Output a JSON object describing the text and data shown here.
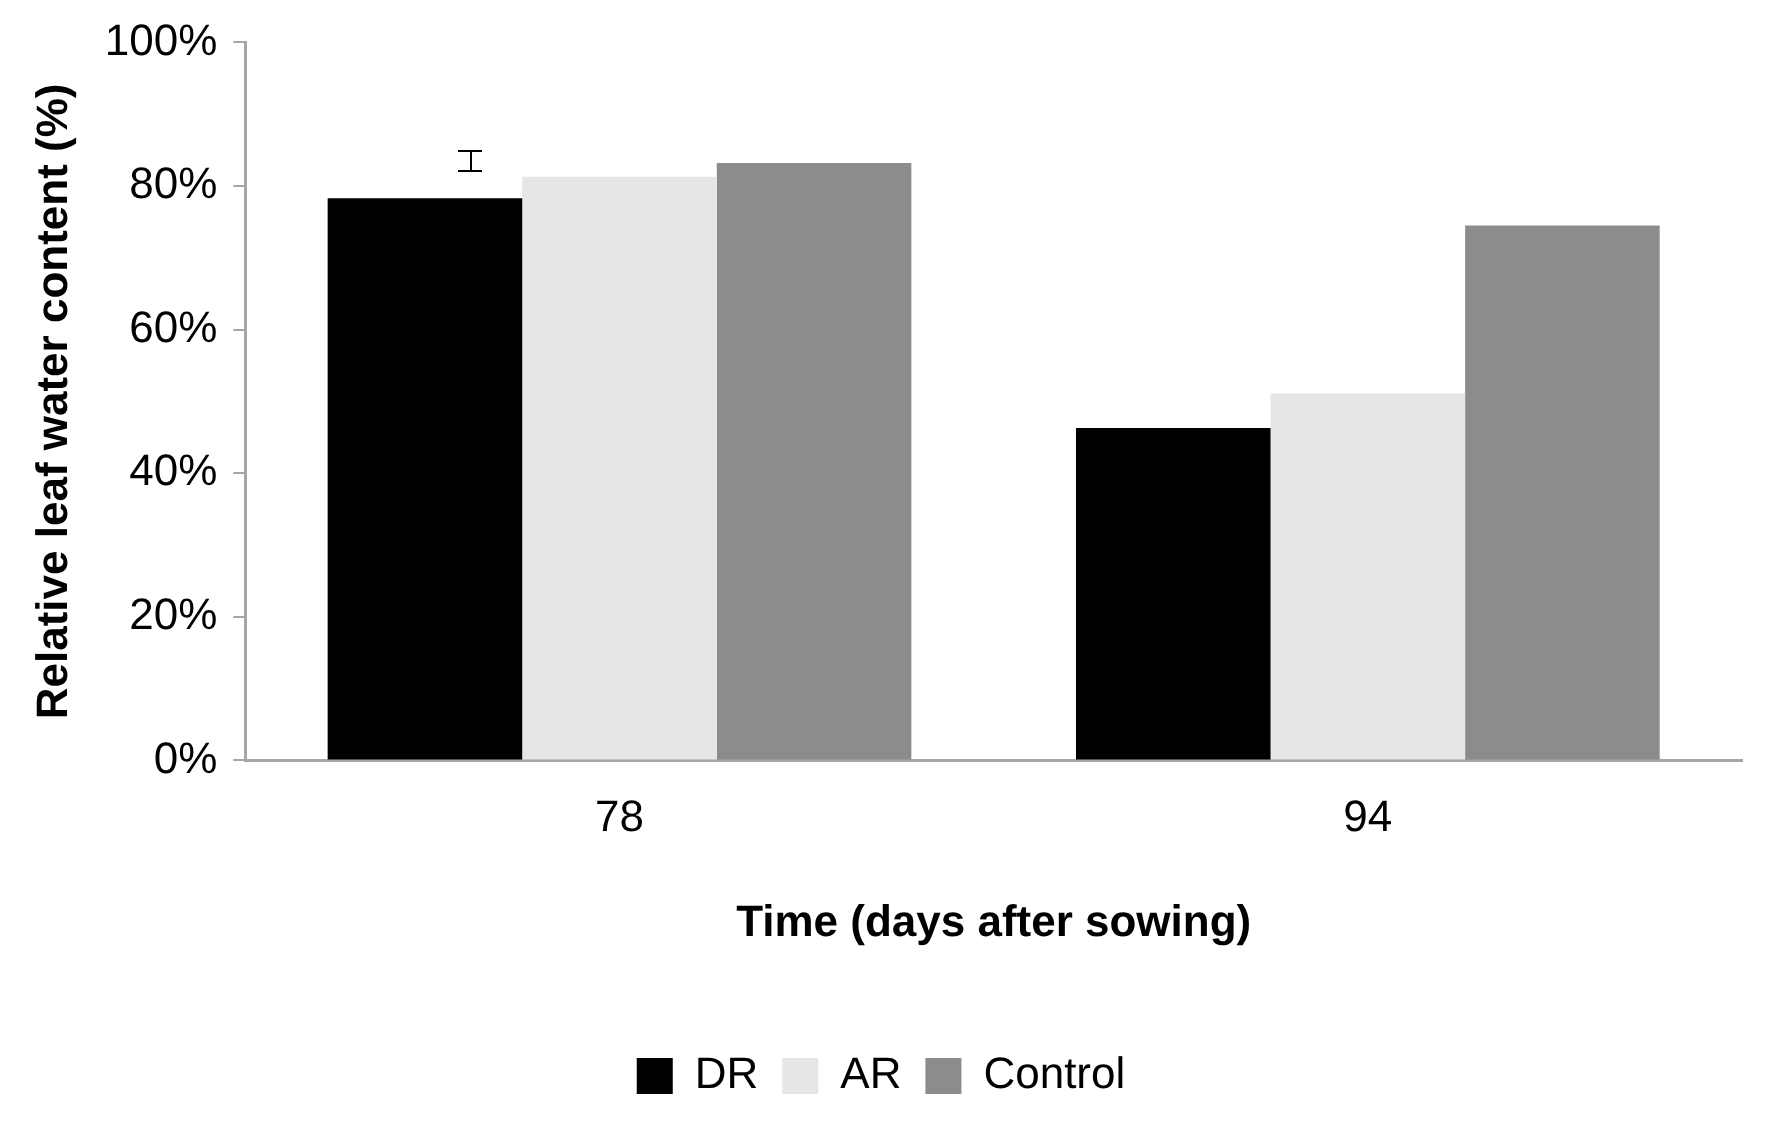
{
  "chart_data": {
    "type": "bar",
    "xlabel": "Time (days after sowing)",
    "ylabel": "Relative leaf water content (%)",
    "categories": [
      "78",
      "94"
    ],
    "series": [
      {
        "name": "DR",
        "color": "#000000",
        "values": [
          78.3,
          46.3
        ]
      },
      {
        "name": "AR",
        "color": "#e6e6e6",
        "values": [
          81.3,
          51.1
        ]
      },
      {
        "name": "Control",
        "color": "#8c8c8c",
        "values": [
          83.2,
          74.5
        ]
      }
    ],
    "ylim": [
      0,
      100
    ],
    "yticks": [
      {
        "value": 0,
        "label": "0%"
      },
      {
        "value": 20,
        "label": "20%"
      },
      {
        "value": 40,
        "label": "40%"
      },
      {
        "value": 60,
        "label": "60%"
      },
      {
        "value": 80,
        "label": "80%"
      },
      {
        "value": 100,
        "label": "100%"
      }
    ],
    "grid": false,
    "legend": "bottom"
  }
}
